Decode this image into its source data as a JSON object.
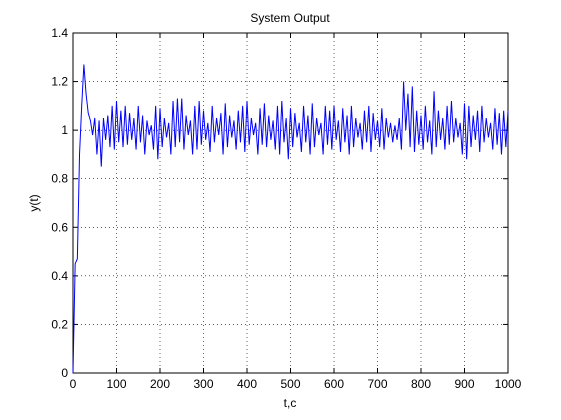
{
  "chart_data": {
    "type": "line",
    "title": "System Output",
    "xlabel": "t,c",
    "ylabel": "y(t)",
    "xlim": [
      0,
      1000
    ],
    "ylim": [
      0,
      1.4
    ],
    "xticks": [
      0,
      100,
      200,
      300,
      400,
      500,
      600,
      700,
      800,
      900,
      1000
    ],
    "yticks": [
      0,
      0.2,
      0.4,
      0.6,
      0.8,
      1,
      1.2,
      1.4
    ],
    "grid": true,
    "x": [
      0,
      5,
      10,
      15,
      20,
      25,
      30,
      35,
      40,
      45,
      50,
      55,
      60,
      65,
      70,
      75,
      80,
      85,
      90,
      95,
      100,
      105,
      110,
      115,
      120,
      125,
      130,
      135,
      140,
      145,
      150,
      155,
      160,
      165,
      170,
      175,
      180,
      185,
      190,
      195,
      200,
      205,
      210,
      215,
      220,
      225,
      230,
      235,
      240,
      245,
      250,
      255,
      260,
      265,
      270,
      275,
      280,
      285,
      290,
      295,
      300,
      305,
      310,
      315,
      320,
      325,
      330,
      335,
      340,
      345,
      350,
      355,
      360,
      365,
      370,
      375,
      380,
      385,
      390,
      395,
      400,
      405,
      410,
      415,
      420,
      425,
      430,
      435,
      440,
      445,
      450,
      455,
      460,
      465,
      470,
      475,
      480,
      485,
      490,
      495,
      500,
      505,
      510,
      515,
      520,
      525,
      530,
      535,
      540,
      545,
      550,
      555,
      560,
      565,
      570,
      575,
      580,
      585,
      590,
      595,
      600,
      605,
      610,
      615,
      620,
      625,
      630,
      635,
      640,
      645,
      650,
      655,
      660,
      665,
      670,
      675,
      680,
      685,
      690,
      695,
      700,
      705,
      710,
      715,
      720,
      725,
      730,
      735,
      740,
      745,
      750,
      755,
      760,
      765,
      770,
      775,
      780,
      785,
      790,
      795,
      800,
      805,
      810,
      815,
      820,
      825,
      830,
      835,
      840,
      845,
      850,
      855,
      860,
      865,
      870,
      875,
      880,
      885,
      890,
      895,
      900,
      905,
      910,
      915,
      920,
      925,
      930,
      935,
      940,
      945,
      950,
      955,
      960,
      965,
      970,
      975,
      980,
      985,
      990,
      995,
      1000
    ],
    "series": [
      {
        "name": "y(t)",
        "color": "#0000ff",
        "values": [
          0,
          0.45,
          0.47,
          0.9,
          1.1,
          1.27,
          1.15,
          1.07,
          1.04,
          0.98,
          1.05,
          0.9,
          1.04,
          0.85,
          1.05,
          0.96,
          1.06,
          0.93,
          1.1,
          0.92,
          1.12,
          0.95,
          1.08,
          0.93,
          1.1,
          0.94,
          1.07,
          0.96,
          1.05,
          0.92,
          1.1,
          0.95,
          1.06,
          0.9,
          1.04,
          0.98,
          1.02,
          0.92,
          1.1,
          0.88,
          1.09,
          0.93,
          1.05,
          0.97,
          1.03,
          0.9,
          1.12,
          0.93,
          1.13,
          0.95,
          1.13,
          0.92,
          1.06,
          0.98,
          1.04,
          0.9,
          1.1,
          0.92,
          1.12,
          0.94,
          1.08,
          0.96,
          1.03,
          0.91,
          1.1,
          0.95,
          1.05,
          0.98,
          1.07,
          0.9,
          1.11,
          0.93,
          1.06,
          0.97,
          1.04,
          0.92,
          1.08,
          0.95,
          1.1,
          0.91,
          1.12,
          0.94,
          1.05,
          0.98,
          1.03,
          0.9,
          1.09,
          0.94,
          1.11,
          0.93,
          1.06,
          0.96,
          1.04,
          0.92,
          1.1,
          0.9,
          1.12,
          0.95,
          1.05,
          0.88,
          1.09,
          0.93,
          1.07,
          0.97,
          1.03,
          0.91,
          1.1,
          0.95,
          1.06,
          0.9,
          1.11,
          0.93,
          1.05,
          0.98,
          1.03,
          0.9,
          1.1,
          0.94,
          1.08,
          0.92,
          1.1,
          0.96,
          1.04,
          0.91,
          1.09,
          0.95,
          1.06,
          0.9,
          1.1,
          0.93,
          1.05,
          0.97,
          1.03,
          0.92,
          1.08,
          0.95,
          1.1,
          0.91,
          1.07,
          0.96,
          1.04,
          0.93,
          1.09,
          0.92,
          1.05,
          0.97,
          1.03,
          0.95,
          1.02,
          0.96,
          1.05,
          0.92,
          1.2,
          1.0,
          1.15,
          0.93,
          1.18,
          0.91,
          1.08,
          0.94,
          1.06,
          0.92,
          1.1,
          0.95,
          1.04,
          0.9,
          1.16,
          0.93,
          1.08,
          0.96,
          1.05,
          0.92,
          1.1,
          0.94,
          1.12,
          0.95,
          1.05,
          0.97,
          1.03,
          0.9,
          1.11,
          0.88,
          1.1,
          0.93,
          1.06,
          0.96,
          1.08,
          0.91,
          1.1,
          0.95,
          1.05,
          0.97,
          1.03,
          0.92,
          1.09,
          0.94,
          1.07,
          0.9,
          1.08,
          0.93,
          1.08
        ]
      }
    ]
  }
}
